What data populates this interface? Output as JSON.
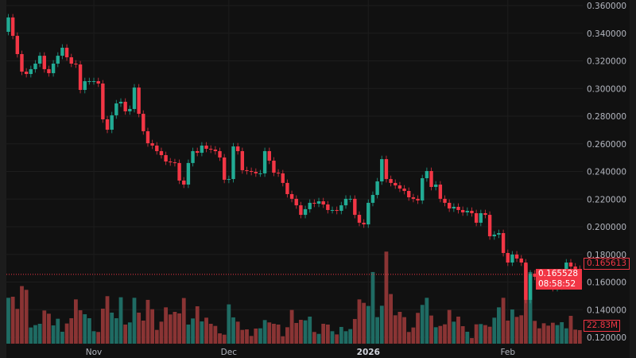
{
  "chart_data": {
    "type": "candlestick",
    "title": "",
    "interval": "daily",
    "x_tick_labels": [
      {
        "label": "Nov",
        "index": 19,
        "bold": false
      },
      {
        "label": "Dec",
        "index": 49,
        "bold": false
      },
      {
        "label": "2026",
        "index": 80,
        "bold": true
      },
      {
        "label": "Feb",
        "index": 111,
        "bold": false
      }
    ],
    "y_tick_labels": [
      "0.360000",
      "0.340000",
      "0.320000",
      "0.300000",
      "0.280000",
      "0.260000",
      "0.240000",
      "0.220000",
      "0.200000",
      "0.180000",
      "0.160000",
      "0.140000",
      "0.120000"
    ],
    "ylim": [
      0.12,
      0.36
    ],
    "grid": true,
    "first_open": 0.341,
    "close": [
      0.3514,
      0.3381,
      0.3249,
      0.3122,
      0.3105,
      0.314,
      0.318,
      0.3237,
      0.314,
      0.3111,
      0.318,
      0.3237,
      0.3295,
      0.3226,
      0.318,
      0.3174,
      0.299,
      0.3053,
      0.3053,
      0.3053,
      0.3036,
      0.2777,
      0.2702,
      0.2806,
      0.2892,
      0.2904,
      0.2835,
      0.2852,
      0.3007,
      0.2817,
      0.2691,
      0.2604,
      0.2587,
      0.2547,
      0.2518,
      0.2472,
      0.2466,
      0.2461,
      0.2334,
      0.2305,
      0.2461,
      0.2547,
      0.2535,
      0.2587,
      0.2564,
      0.2558,
      0.2547,
      0.2501,
      0.234,
      0.2345,
      0.2581,
      0.2547,
      0.2409,
      0.2403,
      0.2397,
      0.2386,
      0.2386,
      0.2547,
      0.2478,
      0.2391,
      0.2386,
      0.2317,
      0.2236,
      0.2202,
      0.2155,
      0.2086,
      0.2127,
      0.2173,
      0.2167,
      0.2184,
      0.2161,
      0.2121,
      0.2121,
      0.2115,
      0.2155,
      0.2202,
      0.2202,
      0.2086,
      0.2029,
      0.2017,
      0.2173,
      0.223,
      0.2328,
      0.2489,
      0.2345,
      0.2317,
      0.2299,
      0.2276,
      0.2259,
      0.2213,
      0.2202,
      0.219,
      0.2351,
      0.2403,
      0.2288,
      0.2305,
      0.2202,
      0.2173,
      0.2132,
      0.2144,
      0.2121,
      0.2104,
      0.2115,
      0.2098,
      0.2029,
      0.2098,
      0.2086,
      0.1931,
      0.1943,
      0.1954,
      0.181,
      0.1741,
      0.1799,
      0.177,
      0.1741,
      0.1471,
      0.1661,
      0.1638,
      0.1626,
      0.1597,
      0.158,
      0.1557,
      0.1569,
      0.1655,
      0.1741,
      0.1712,
      0.1695,
      0.165528
    ],
    "volume_millions": [
      77.3,
      79.1,
      58.6,
      97.0,
      90.7,
      27.3,
      31.3,
      33.5,
      55.9,
      50.5,
      30.8,
      42.0,
      20.1,
      34.0,
      42.9,
      74.6,
      56.3,
      49.6,
      42.9,
      21.0,
      19.7,
      59.0,
      80.0,
      52.3,
      42.9,
      78.2,
      32.2,
      35.8,
      77.3,
      52.3,
      38.9,
      73.8,
      58.1,
      23.2,
      37.1,
      61.2,
      49.2,
      53.6,
      51.0,
      76.9,
      32.2,
      42.5,
      63.0,
      37.5,
      43.8,
      33.5,
      29.9,
      17.4,
      15.2,
      66.2,
      44.3,
      37.1,
      23.2,
      24.1,
      13.0,
      25.5,
      25.9,
      39.8,
      35.8,
      33.5,
      32.2,
      12.5,
      27.7,
      56.8,
      34.9,
      40.2,
      39.3,
      45.6,
      19.7,
      16.5,
      33.5,
      32.2,
      21.0,
      15.6,
      28.2,
      21.0,
      24.6,
      41.6,
      74.6,
      68.8,
      63.5,
      120.7,
      44.7,
      63.9,
      155.1,
      83.6,
      47.8,
      53.6,
      44.7,
      19.7,
      27.3,
      51.9,
      65.3,
      77.3,
      47.4,
      27.7,
      29.9,
      32.6,
      56.8,
      37.1,
      45.6,
      29.5,
      20.1,
      9.4,
      32.6,
      33.1,
      31.3,
      28.6,
      43.8,
      61.2,
      77.3,
      38.9,
      57.7,
      45.1,
      47.8,
      134.1,
      120.7,
      38.4,
      25.9,
      34.4,
      30.4,
      35.3,
      31.3,
      36.2,
      25.9,
      46.9,
      23.7,
      22.83
    ],
    "colors": {
      "up": "#22ab94",
      "down": "#f23645",
      "volume_up": "#1f6b63",
      "volume_down": "#8a3434",
      "background": "#111111",
      "grid": "#1d1d1d"
    }
  },
  "price_tags": {
    "prev_price": "0.165613",
    "last_price": "0.165528",
    "countdown": "08:58:52",
    "last_volume": "22.83M"
  }
}
